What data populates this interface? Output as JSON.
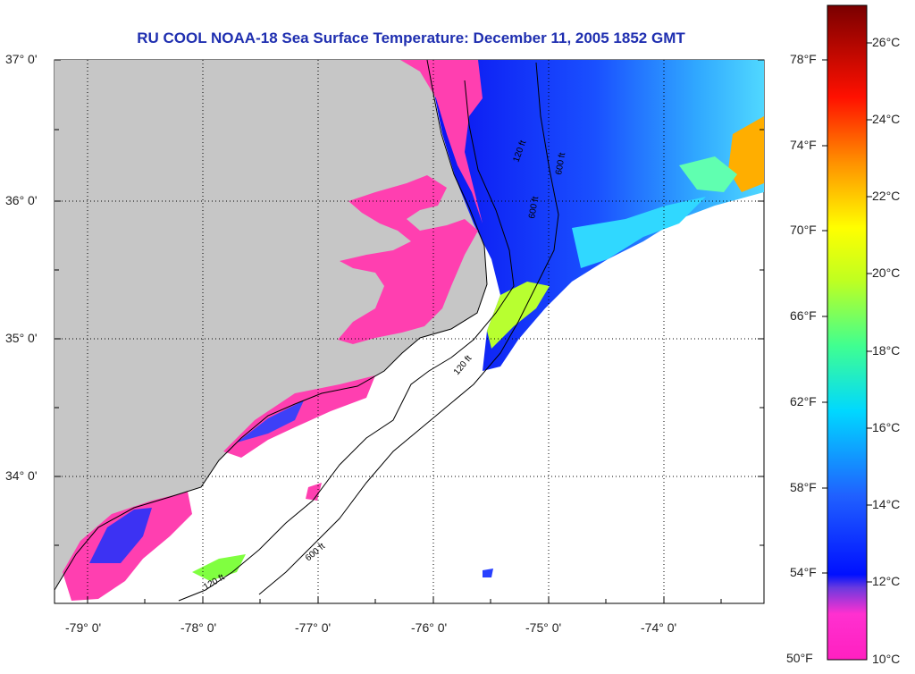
{
  "title": "RU COOL  NOAA-18  Sea Surface Temperature:  December 11, 2005 1852 GMT",
  "map": {
    "lat_labels": [
      "37° 0'",
      "36° 0'",
      "35° 0'",
      "34° 0'"
    ],
    "lon_labels": [
      "-79° 0'",
      "-78° 0'",
      "-77° 0'",
      "-76° 0'",
      "-75° 0'",
      "-74° 0'"
    ],
    "contours": [
      "120 ft",
      "600 ft",
      "120 ft",
      "600 ft",
      "600 ft",
      "120 ft"
    ]
  },
  "colorbar": {
    "fahrenheit": [
      "78°F",
      "74°F",
      "70°F",
      "66°F",
      "62°F",
      "58°F",
      "54°F",
      "50°F"
    ],
    "celsius": [
      "26°C",
      "24°C",
      "22°C",
      "20°C",
      "18°C",
      "16°C",
      "14°C",
      "12°C",
      "10°C"
    ]
  },
  "colors": {
    "land": "#c6c6c6",
    "title": "#1f2fb0",
    "sst_min": "#ff2ec8",
    "sst_mid": "#0a1cff",
    "sst_max": "#7a0000"
  }
}
